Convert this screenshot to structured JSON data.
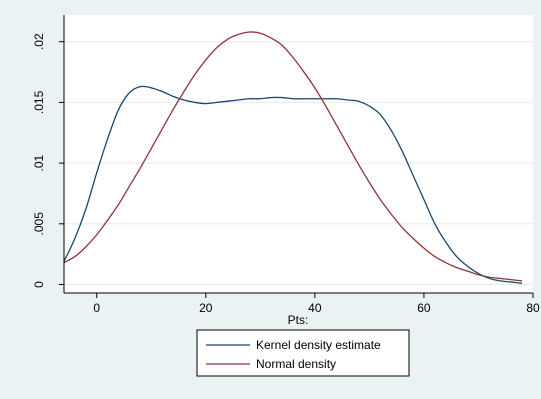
{
  "chart_data": {
    "type": "line",
    "title": "",
    "xlabel": "Pts:",
    "ylabel": "",
    "xlim": [
      -6,
      80
    ],
    "ylim": [
      -0.0007,
      0.0222
    ],
    "x_ticks": [
      0,
      20,
      40,
      60,
      80
    ],
    "x_tick_labels": [
      "0",
      "20",
      "40",
      "60",
      "80"
    ],
    "y_ticks": [
      0,
      0.005,
      0.01,
      0.015,
      0.02
    ],
    "y_tick_labels": [
      "0",
      ".005",
      ".01",
      ".015",
      ".02"
    ],
    "grid": true,
    "legend_position": "bottom",
    "series": [
      {
        "name": "Kernel density estimate",
        "color": "#1a476f",
        "x": [
          -6,
          -4,
          -2,
          0,
          2,
          4,
          6,
          8,
          10,
          12,
          14,
          16,
          18,
          20,
          22,
          24,
          26,
          28,
          30,
          32,
          34,
          36,
          38,
          40,
          42,
          44,
          46,
          48,
          50,
          52,
          54,
          56,
          58,
          60,
          62,
          64,
          66,
          68,
          70,
          72,
          74,
          76,
          78
        ],
        "values": [
          0.0019,
          0.0038,
          0.0062,
          0.0092,
          0.012,
          0.0144,
          0.0158,
          0.0163,
          0.0162,
          0.0159,
          0.0155,
          0.0152,
          0.015,
          0.0149,
          0.015,
          0.0151,
          0.0152,
          0.0153,
          0.0153,
          0.0154,
          0.0154,
          0.0153,
          0.0153,
          0.0153,
          0.0153,
          0.0153,
          0.0152,
          0.0151,
          0.0147,
          0.014,
          0.0127,
          0.011,
          0.009,
          0.007,
          0.005,
          0.0035,
          0.0023,
          0.0015,
          0.0009,
          0.0005,
          0.0003,
          0.0002,
          0.0001
        ]
      },
      {
        "name": "Normal density",
        "color": "#90353b",
        "x": [
          -6,
          -4,
          -2,
          0,
          2,
          4,
          6,
          8,
          10,
          12,
          14,
          16,
          18,
          20,
          22,
          24,
          26,
          28,
          30,
          32,
          34,
          36,
          38,
          40,
          42,
          44,
          46,
          48,
          50,
          52,
          54,
          56,
          58,
          60,
          62,
          64,
          66,
          68,
          70,
          72,
          74,
          76,
          78
        ],
        "values": [
          0.0018,
          0.0023,
          0.0031,
          0.0041,
          0.0053,
          0.0066,
          0.0081,
          0.0096,
          0.0112,
          0.0128,
          0.0144,
          0.0159,
          0.0173,
          0.0185,
          0.0195,
          0.0202,
          0.0206,
          0.0208,
          0.0207,
          0.0203,
          0.0197,
          0.0187,
          0.0175,
          0.0162,
          0.0147,
          0.0131,
          0.0115,
          0.0099,
          0.0084,
          0.007,
          0.0058,
          0.0047,
          0.0038,
          0.003,
          0.0023,
          0.0018,
          0.0014,
          0.0011,
          0.0008,
          0.0006,
          0.0005,
          0.0004,
          0.0003
        ]
      }
    ]
  }
}
